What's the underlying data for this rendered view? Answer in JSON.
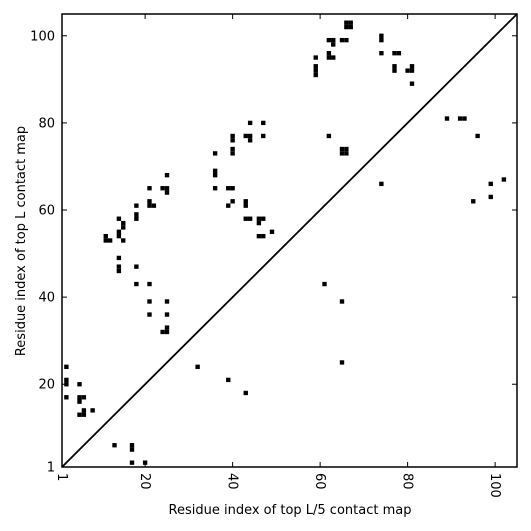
{
  "chart_data": {
    "type": "scatter",
    "title": "",
    "xlabel": "Residue index of top L/5 contact map",
    "ylabel": "Residue index of top L contact map",
    "xlim": [
      1,
      105
    ],
    "ylim": [
      1,
      105
    ],
    "xticks": [
      1,
      20,
      40,
      60,
      80,
      100
    ],
    "yticks": [
      1,
      20,
      40,
      60,
      80,
      100
    ],
    "xtick_labels": [
      "1",
      "20",
      "40",
      "60",
      "80",
      "100"
    ],
    "ytick_labels": [
      "1",
      "20",
      "40",
      "60",
      "80",
      "100"
    ],
    "grid": false,
    "legend": "none",
    "marker": "square",
    "color": "#000000",
    "diagonal": {
      "from": [
        1,
        1
      ],
      "to": [
        105,
        105
      ]
    },
    "upper_points": [
      [
        59,
        95
      ],
      [
        59,
        93
      ],
      [
        59,
        92
      ],
      [
        59,
        91
      ],
      [
        62,
        99
      ],
      [
        62,
        96
      ],
      [
        62,
        95
      ],
      [
        63,
        99
      ],
      [
        63,
        98
      ],
      [
        63,
        95
      ],
      [
        65,
        99
      ],
      [
        66,
        99
      ],
      [
        66,
        103
      ],
      [
        67,
        103
      ],
      [
        66,
        102
      ],
      [
        67,
        102
      ],
      [
        74,
        100
      ],
      [
        74,
        99
      ],
      [
        74,
        96
      ],
      [
        77,
        96
      ],
      [
        78,
        96
      ],
      [
        77,
        93
      ],
      [
        77,
        92
      ],
      [
        80,
        92
      ],
      [
        81,
        93
      ],
      [
        81,
        92
      ],
      [
        81,
        89
      ],
      [
        89,
        81
      ],
      [
        92,
        81
      ],
      [
        93,
        81
      ],
      [
        96,
        77
      ],
      [
        95,
        62
      ],
      [
        99,
        66
      ],
      [
        99,
        63
      ],
      [
        102,
        67
      ],
      [
        62,
        77
      ],
      [
        65,
        74
      ],
      [
        66,
        74
      ],
      [
        65,
        73
      ],
      [
        66,
        73
      ],
      [
        74,
        66
      ],
      [
        36,
        73
      ],
      [
        36,
        69
      ],
      [
        36,
        68
      ],
      [
        36,
        65
      ],
      [
        40,
        77
      ],
      [
        40,
        76
      ],
      [
        40,
        74
      ],
      [
        40,
        73
      ],
      [
        39,
        65
      ],
      [
        40,
        65
      ],
      [
        39,
        61
      ],
      [
        40,
        62
      ],
      [
        44,
        80
      ],
      [
        47,
        80
      ],
      [
        43,
        77
      ],
      [
        44,
        77
      ],
      [
        47,
        77
      ],
      [
        44,
        76
      ],
      [
        43,
        62
      ],
      [
        43,
        61
      ],
      [
        43,
        58
      ],
      [
        44,
        58
      ],
      [
        46,
        58
      ],
      [
        47,
        58
      ],
      [
        46,
        57
      ],
      [
        46,
        54
      ],
      [
        47,
        54
      ],
      [
        49,
        55
      ],
      [
        25,
        68
      ],
      [
        25,
        65
      ],
      [
        24,
        65
      ],
      [
        25,
        64
      ],
      [
        21,
        65
      ],
      [
        21,
        62
      ],
      [
        21,
        61
      ],
      [
        22,
        61
      ],
      [
        18,
        61
      ],
      [
        18,
        59
      ],
      [
        18,
        58
      ],
      [
        14,
        58
      ],
      [
        15,
        57
      ],
      [
        15,
        56
      ],
      [
        11,
        54
      ],
      [
        11,
        53
      ],
      [
        12,
        53
      ],
      [
        14,
        55
      ],
      [
        14,
        54
      ],
      [
        15,
        53
      ],
      [
        14,
        49
      ],
      [
        14,
        47
      ],
      [
        14,
        46
      ],
      [
        18,
        47
      ],
      [
        18,
        43
      ],
      [
        21,
        43
      ],
      [
        21,
        39
      ],
      [
        25,
        39
      ],
      [
        21,
        36
      ],
      [
        25,
        36
      ],
      [
        25,
        33
      ],
      [
        24,
        32
      ],
      [
        25,
        32
      ],
      [
        2,
        24
      ],
      [
        2,
        21
      ],
      [
        2,
        20
      ],
      [
        2,
        17
      ],
      [
        5,
        20
      ],
      [
        5,
        17
      ],
      [
        5,
        16
      ],
      [
        6,
        17
      ],
      [
        5,
        13
      ],
      [
        6,
        14
      ],
      [
        6,
        13
      ],
      [
        8,
        14
      ],
      [
        13,
        6
      ],
      [
        17,
        6
      ],
      [
        17,
        5
      ],
      [
        17,
        2
      ],
      [
        20,
        2
      ],
      [
        32,
        24
      ],
      [
        39,
        21
      ],
      [
        43,
        18
      ]
    ],
    "lower_points": [
      [
        61,
        43
      ],
      [
        65,
        39
      ],
      [
        65,
        25
      ]
    ]
  }
}
